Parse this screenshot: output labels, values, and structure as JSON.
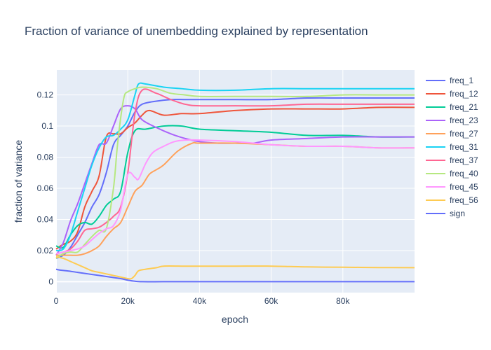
{
  "chart_data": {
    "type": "line",
    "title": "Fraction of variance of unembedding explained by representation",
    "xlabel": "epoch",
    "ylabel": "fraction of variance",
    "xlim": [
      0,
      100000
    ],
    "ylim": [
      -0.007,
      0.136
    ],
    "x_ticks": [
      0,
      20000,
      40000,
      60000,
      80000
    ],
    "x_tick_labels": [
      "0",
      "20k",
      "40k",
      "60k",
      "80k"
    ],
    "y_ticks": [
      0,
      0.02,
      0.04,
      0.06,
      0.08,
      0.1,
      0.12
    ],
    "y_tick_labels": [
      "0",
      "0.02",
      "0.04",
      "0.06",
      "0.08",
      "0.1",
      "0.12"
    ],
    "grid": true,
    "legend_position": "right",
    "background": "#e5ecf6",
    "series": [
      {
        "name": "freq_1",
        "color": "#636efa",
        "x": [
          0,
          2000,
          4000,
          6000,
          8000,
          10000,
          12000,
          14000,
          16000,
          18000,
          20000,
          22000,
          24000,
          28000,
          32000,
          36000,
          40000,
          50000,
          60000,
          70000,
          80000,
          90000,
          100000
        ],
        "y": [
          0.015,
          0.017,
          0.022,
          0.03,
          0.038,
          0.048,
          0.056,
          0.07,
          0.088,
          0.094,
          0.1,
          0.109,
          0.114,
          0.116,
          0.117,
          0.117,
          0.117,
          0.117,
          0.117,
          0.118,
          0.118,
          0.118,
          0.118
        ]
      },
      {
        "name": "freq_12",
        "color": "#ef553b",
        "x": [
          0,
          2000,
          4000,
          6000,
          8000,
          10000,
          12000,
          14000,
          16000,
          18000,
          20000,
          22000,
          24000,
          26000,
          30000,
          35000,
          40000,
          50000,
          60000,
          70000,
          80000,
          90000,
          100000
        ],
        "y": [
          0.021,
          0.024,
          0.026,
          0.032,
          0.048,
          0.058,
          0.068,
          0.093,
          0.095,
          0.095,
          0.099,
          0.102,
          0.107,
          0.11,
          0.107,
          0.108,
          0.108,
          0.11,
          0.111,
          0.111,
          0.111,
          0.112,
          0.112
        ]
      },
      {
        "name": "freq_21",
        "color": "#00cc96",
        "x": [
          0,
          2000,
          4000,
          6000,
          8000,
          10000,
          12000,
          14000,
          16000,
          18000,
          20000,
          22000,
          25000,
          30000,
          35000,
          40000,
          50000,
          60000,
          70000,
          80000,
          90000,
          100000
        ],
        "y": [
          0.023,
          0.022,
          0.03,
          0.036,
          0.038,
          0.037,
          0.042,
          0.049,
          0.053,
          0.058,
          0.083,
          0.097,
          0.098,
          0.1,
          0.1,
          0.098,
          0.097,
          0.096,
          0.094,
          0.094,
          0.093,
          0.093
        ]
      },
      {
        "name": "freq_23",
        "color": "#ab63fa",
        "x": [
          0,
          2000,
          4000,
          6000,
          8000,
          10000,
          12000,
          14000,
          16000,
          18000,
          20000,
          22000,
          24000,
          28000,
          32000,
          36000,
          40000,
          45000,
          50000,
          55000,
          60000,
          70000,
          80000,
          90000,
          100000
        ],
        "y": [
          0.017,
          0.025,
          0.039,
          0.05,
          0.063,
          0.076,
          0.088,
          0.089,
          0.1,
          0.111,
          0.113,
          0.111,
          0.104,
          0.099,
          0.095,
          0.092,
          0.09,
          0.089,
          0.089,
          0.089,
          0.091,
          0.092,
          0.093,
          0.093,
          0.093
        ]
      },
      {
        "name": "freq_27",
        "color": "#ffa15a",
        "x": [
          0,
          2000,
          4000,
          6000,
          8000,
          10000,
          12000,
          14000,
          16000,
          18000,
          20000,
          22000,
          24000,
          26000,
          28000,
          30000,
          34000,
          38000,
          40000,
          50000,
          60000,
          70000,
          80000,
          90000,
          100000
        ],
        "y": [
          0.017,
          0.017,
          0.017,
          0.017,
          0.018,
          0.02,
          0.023,
          0.029,
          0.034,
          0.038,
          0.048,
          0.058,
          0.062,
          0.069,
          0.072,
          0.075,
          0.084,
          0.089,
          0.089,
          0.089,
          0.088,
          0.087,
          0.087,
          0.086,
          0.086
        ]
      },
      {
        "name": "freq_31",
        "color": "#19d3f3",
        "x": [
          0,
          2000,
          4000,
          6000,
          8000,
          10000,
          12000,
          14000,
          16000,
          18000,
          20000,
          22000,
          23000,
          25000,
          30000,
          35000,
          40000,
          50000,
          60000,
          70000,
          80000,
          90000,
          100000
        ],
        "y": [
          0.02,
          0.021,
          0.03,
          0.045,
          0.06,
          0.075,
          0.086,
          0.093,
          0.094,
          0.098,
          0.104,
          0.12,
          0.127,
          0.127,
          0.125,
          0.124,
          0.123,
          0.123,
          0.124,
          0.124,
          0.124,
          0.124,
          0.124
        ]
      },
      {
        "name": "freq_37",
        "color": "#ff6692",
        "x": [
          0,
          2000,
          4000,
          6000,
          8000,
          10000,
          12000,
          14000,
          16000,
          18000,
          20000,
          22000,
          24000,
          28000,
          32000,
          36000,
          40000,
          50000,
          60000,
          70000,
          80000,
          90000,
          100000
        ],
        "y": [
          0.018,
          0.019,
          0.021,
          0.026,
          0.033,
          0.034,
          0.035,
          0.038,
          0.042,
          0.048,
          0.07,
          0.108,
          0.123,
          0.121,
          0.117,
          0.114,
          0.113,
          0.113,
          0.113,
          0.114,
          0.114,
          0.114,
          0.114
        ]
      },
      {
        "name": "freq_40",
        "color": "#b6e880",
        "x": [
          0,
          2000,
          4000,
          6000,
          8000,
          10000,
          12000,
          14000,
          16000,
          17000,
          18000,
          19000,
          20000,
          22000,
          24000,
          28000,
          32000,
          36000,
          40000,
          50000,
          60000,
          70000,
          80000,
          90000,
          100000
        ],
        "y": [
          0.015,
          0.018,
          0.019,
          0.019,
          0.024,
          0.029,
          0.033,
          0.034,
          0.06,
          0.085,
          0.105,
          0.119,
          0.122,
          0.124,
          0.125,
          0.124,
          0.121,
          0.12,
          0.119,
          0.119,
          0.119,
          0.119,
          0.12,
          0.12,
          0.12
        ]
      },
      {
        "name": "freq_45",
        "color": "#ff97ff",
        "x": [
          0,
          2000,
          4000,
          6000,
          8000,
          10000,
          12000,
          14000,
          16000,
          18000,
          20000,
          22000,
          23000,
          25000,
          27000,
          30000,
          33000,
          36000,
          40000,
          50000,
          60000,
          70000,
          80000,
          90000,
          100000
        ],
        "y": [
          0.018,
          0.019,
          0.02,
          0.021,
          0.023,
          0.027,
          0.031,
          0.034,
          0.036,
          0.046,
          0.069,
          0.067,
          0.066,
          0.076,
          0.083,
          0.087,
          0.09,
          0.091,
          0.091,
          0.09,
          0.088,
          0.087,
          0.087,
          0.086,
          0.086
        ]
      },
      {
        "name": "freq_56",
        "color": "#fecb52",
        "x": [
          0,
          2000,
          4000,
          6000,
          8000,
          10000,
          12000,
          14000,
          16000,
          18000,
          20000,
          21000,
          22000,
          23000,
          25000,
          28000,
          30000,
          35000,
          40000,
          50000,
          60000,
          70000,
          80000,
          90000,
          100000
        ],
        "y": [
          0.016,
          0.015,
          0.013,
          0.011,
          0.009,
          0.007,
          0.006,
          0.005,
          0.004,
          0.003,
          0.002,
          0.002,
          0.004,
          0.007,
          0.008,
          0.009,
          0.01,
          0.01,
          0.01,
          0.01,
          0.01,
          0.0095,
          0.0093,
          0.0091,
          0.009
        ]
      },
      {
        "name": "sign",
        "color": "#636efa",
        "x": [
          0,
          1000,
          3000,
          6000,
          9000,
          12000,
          15000,
          18000,
          20000,
          22000,
          24000,
          30000,
          40000,
          50000,
          60000,
          70000,
          80000,
          90000,
          100000
        ],
        "y": [
          0.008,
          0.0075,
          0.007,
          0.006,
          0.005,
          0.004,
          0.003,
          0.002,
          0.001,
          0.0003,
          0,
          0,
          0,
          0,
          0,
          0,
          0,
          0,
          0
        ]
      }
    ]
  }
}
